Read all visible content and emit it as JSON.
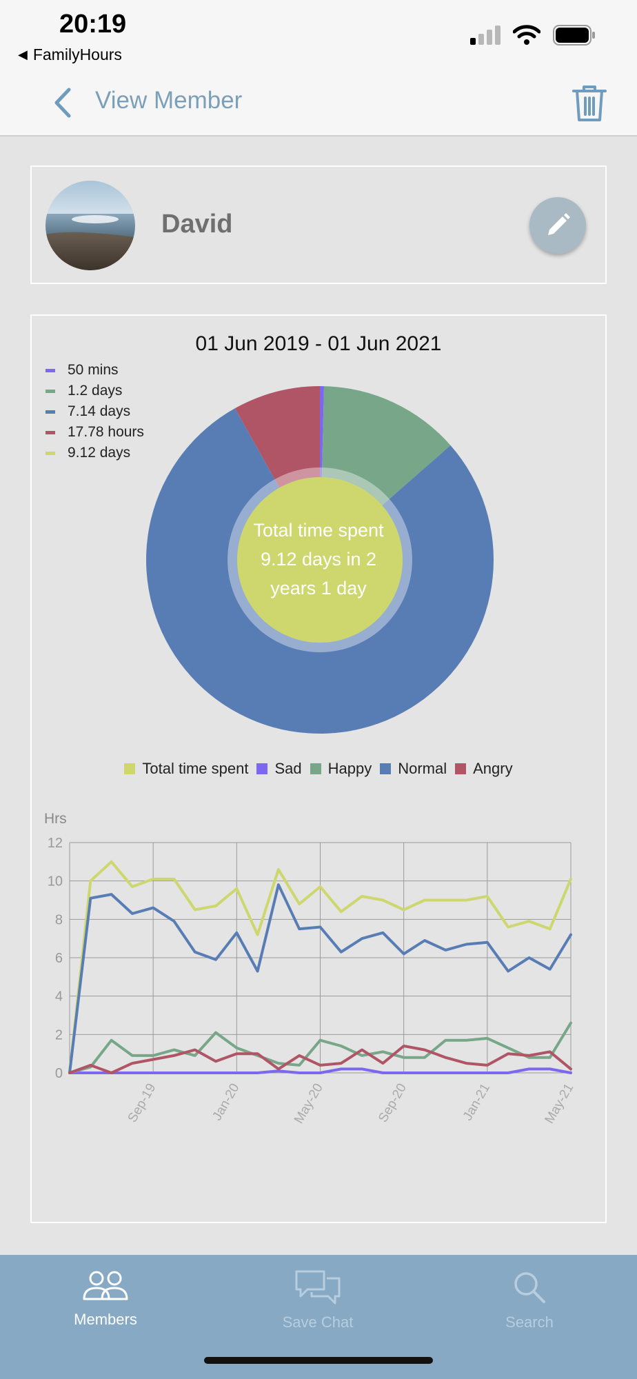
{
  "status_bar": {
    "time": "20:19",
    "back_app": "FamilyHours"
  },
  "nav": {
    "title": "View Member"
  },
  "member": {
    "name": "David"
  },
  "chart_card": {
    "date_range": "01 Jun 2019 - 01 Jun 2021",
    "center_text": "Total time spent 9.12 days in 2 years 1 day"
  },
  "colors": {
    "sad": "#7b68ee",
    "happy": "#77a688",
    "normal": "#587db5",
    "angry": "#b05566",
    "total": "#cdd76e"
  },
  "chart_data": [
    {
      "type": "pie",
      "title": "01 Jun 2019 - 01 Jun 2021",
      "legend_placement": "top-left",
      "legend": [
        "50 mins",
        "1.2 days",
        "7.14 days",
        "17.78 hours",
        "9.12 days"
      ],
      "slices": [
        {
          "label": "50 mins",
          "category": "Sad",
          "value_hours": 0.83,
          "color": "#7b68ee"
        },
        {
          "label": "1.2 days",
          "category": "Happy",
          "value_hours": 28.8,
          "color": "#77a688"
        },
        {
          "label": "7.14 days",
          "category": "Normal",
          "value_hours": 171.36,
          "color": "#587db5"
        },
        {
          "label": "17.78 hours",
          "category": "Angry",
          "value_hours": 17.78,
          "color": "#b05566"
        }
      ],
      "center": {
        "label": "9.12 days",
        "category": "Total time spent",
        "color": "#cdd76e"
      }
    },
    {
      "type": "line",
      "ylabel": "Hrs",
      "ylim": [
        0,
        12
      ],
      "yticks": [
        0,
        2,
        4,
        6,
        8,
        10,
        12
      ],
      "grid": true,
      "legend_placement": "top",
      "xticks": [
        "Sep-19",
        "Jan-20",
        "May-20",
        "Sep-20",
        "Jan-21",
        "May-21"
      ],
      "x": [
        "Jun-19",
        "Jul-19",
        "Aug-19",
        "Sep-19",
        "Oct-19",
        "Nov-19",
        "Dec-19",
        "Jan-20",
        "Feb-20",
        "Mar-20",
        "Apr-20",
        "May-20",
        "Jun-20",
        "Jul-20",
        "Aug-20",
        "Sep-20",
        "Oct-20",
        "Nov-20",
        "Dec-20",
        "Jan-21",
        "Feb-21",
        "Mar-21",
        "Apr-21",
        "May-21",
        "Jun-21"
      ],
      "series": [
        {
          "name": "Total time spent",
          "color": "#cdd76e",
          "values": [
            0,
            10.0,
            11.0,
            9.7,
            10.1,
            10.1,
            8.5,
            8.7,
            9.6,
            7.2,
            10.6,
            8.8,
            9.7,
            8.4,
            9.2,
            9.0,
            8.5,
            9.0,
            9.0,
            9.0,
            9.2,
            7.6,
            7.9,
            7.5,
            10.1
          ]
        },
        {
          "name": "Sad",
          "color": "#7b68ee",
          "values": [
            0,
            0,
            0,
            0,
            0,
            0,
            0,
            0,
            0,
            0,
            0.1,
            0,
            0,
            0.2,
            0.2,
            0,
            0,
            0,
            0,
            0,
            0,
            0,
            0.2,
            0.2,
            0
          ]
        },
        {
          "name": "Happy",
          "color": "#77a688",
          "values": [
            0,
            0.3,
            1.7,
            0.9,
            0.9,
            1.2,
            0.9,
            2.1,
            1.3,
            0.9,
            0.5,
            0.4,
            1.7,
            1.4,
            0.9,
            1.1,
            0.8,
            0.8,
            1.7,
            1.7,
            1.8,
            1.3,
            0.8,
            0.8,
            2.6
          ]
        },
        {
          "name": "Normal",
          "color": "#587db5",
          "values": [
            0,
            9.1,
            9.3,
            8.3,
            8.6,
            7.9,
            6.3,
            5.9,
            7.3,
            5.3,
            9.8,
            7.5,
            7.6,
            6.3,
            7.0,
            7.3,
            6.2,
            6.9,
            6.4,
            6.7,
            6.8,
            5.3,
            6.0,
            5.4,
            7.2
          ]
        },
        {
          "name": "Angry",
          "color": "#b05566",
          "values": [
            0,
            0.4,
            0,
            0.5,
            0.7,
            0.9,
            1.2,
            0.6,
            1.0,
            1.0,
            0.2,
            0.9,
            0.4,
            0.5,
            1.2,
            0.5,
            1.4,
            1.2,
            0.8,
            0.5,
            0.4,
            1.0,
            0.9,
            1.1,
            0.2
          ]
        }
      ]
    }
  ],
  "line_legend": [
    "Total time spent",
    "Sad",
    "Happy",
    "Normal",
    "Angry"
  ],
  "tabbar": {
    "tabs": [
      {
        "label": "Members"
      },
      {
        "label": "Save Chat"
      },
      {
        "label": "Search"
      }
    ]
  }
}
